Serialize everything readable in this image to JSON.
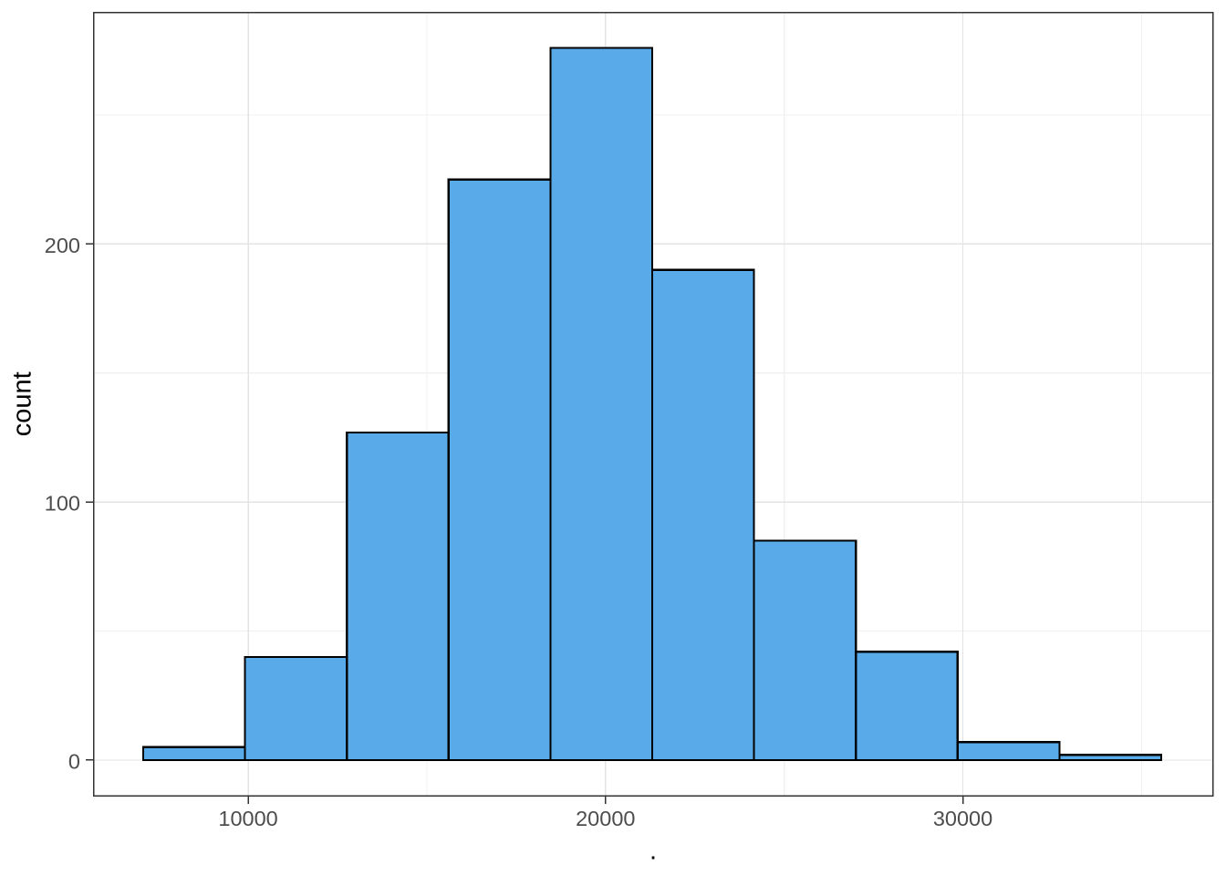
{
  "figure": {
    "background": "#FFFFFF",
    "panel_background": "#FFFFFF",
    "panel_border_color": "#333333",
    "grid_major_color": "#E3E3E3",
    "grid_minor_color": "#F0F0F0",
    "tick_mark_color": "#333333",
    "tick_label_color": "#4D4D4D",
    "axis_title_color": "#000000"
  },
  "chart_data": {
    "type": "bar",
    "subtype": "histogram",
    "title": "",
    "xlabel": ".",
    "ylabel": "count",
    "bin_edges": [
      7063,
      9912,
      12761,
      15610,
      18459,
      21308,
      24157,
      27006,
      29855,
      32704,
      35553
    ],
    "counts": [
      5,
      40,
      127,
      225,
      276,
      190,
      85,
      42,
      7,
      2
    ],
    "x_tick_values": [
      10000,
      20000,
      30000
    ],
    "x_tick_labels": [
      "10000",
      "20000",
      "30000"
    ],
    "y_tick_values": [
      0,
      100,
      200
    ],
    "y_tick_labels": [
      "0",
      "100",
      "200"
    ],
    "x_minor_values": [
      5000,
      15000,
      25000,
      35000
    ],
    "y_minor_values": [
      50,
      150,
      250
    ],
    "xlim": [
      5671,
      36994
    ],
    "ylim": [
      -13.8,
      289.8
    ],
    "bar_fill": "#58ABE8",
    "bar_stroke": "#000000",
    "grid": "on",
    "legend": "none"
  }
}
